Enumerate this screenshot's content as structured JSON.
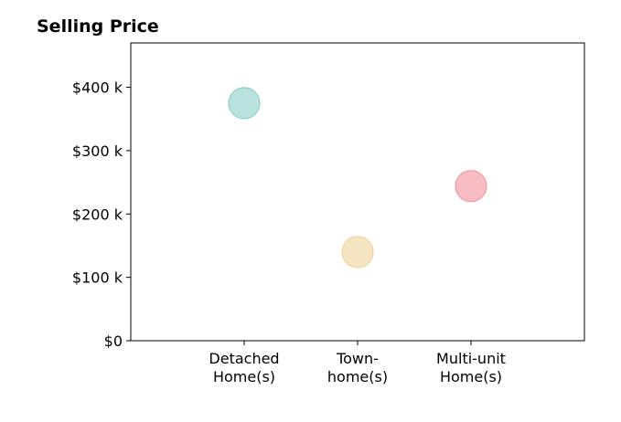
{
  "chart_data": {
    "type": "scatter",
    "title": "Selling Price",
    "xlabel": "",
    "ylabel": "",
    "categories": [
      [
        "Detached",
        "Home(s)"
      ],
      [
        "Town-",
        "home(s)"
      ],
      [
        "Multi-unit",
        "Home(s)"
      ]
    ],
    "values": [
      375000,
      140000,
      244000
    ],
    "colors": [
      "#b2dfdb",
      "#f5e2bd",
      "#f6b6bc"
    ],
    "stroke_colors": [
      "#93cfc9",
      "#eed5a3",
      "#ef9ea6"
    ],
    "ylim": [
      0,
      470000
    ],
    "xlim": [
      -1,
      3
    ],
    "yticks": [
      0,
      100000,
      200000,
      300000,
      400000
    ],
    "ytick_labels": [
      "$0",
      "$100 k",
      "$200 k",
      "$300 k",
      "$400 k"
    ],
    "grid": false,
    "legend": "none"
  }
}
